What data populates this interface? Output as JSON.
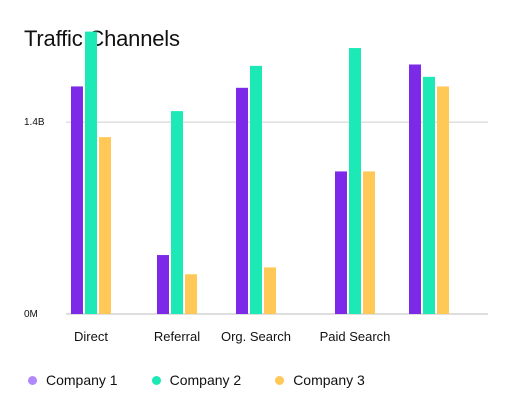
{
  "chart_data": {
    "type": "bar",
    "title": "Traffic Channels",
    "xlabel": "",
    "ylabel": "",
    "categories": [
      "Direct",
      "Referral",
      "Org. Search",
      "Paid Search",
      ""
    ],
    "y_ticks": [
      {
        "value": 0,
        "label": "0M"
      },
      {
        "value": 1.4,
        "label": "1.4B"
      }
    ],
    "ylim": [
      0,
      2.13
    ],
    "grid": true,
    "legend_position": "bottom",
    "series": [
      {
        "name": "Company 1",
        "color": "#7c2ae8",
        "values": [
          1.66,
          0.43,
          1.65,
          1.04,
          1.82
        ]
      },
      {
        "name": "Company 2",
        "color": "#1de9b6",
        "values": [
          2.06,
          1.48,
          1.81,
          1.94,
          1.73
        ]
      },
      {
        "name": "Company 3",
        "color": "#ffc857",
        "values": [
          1.29,
          0.29,
          0.34,
          1.04,
          1.66
        ]
      }
    ]
  }
}
